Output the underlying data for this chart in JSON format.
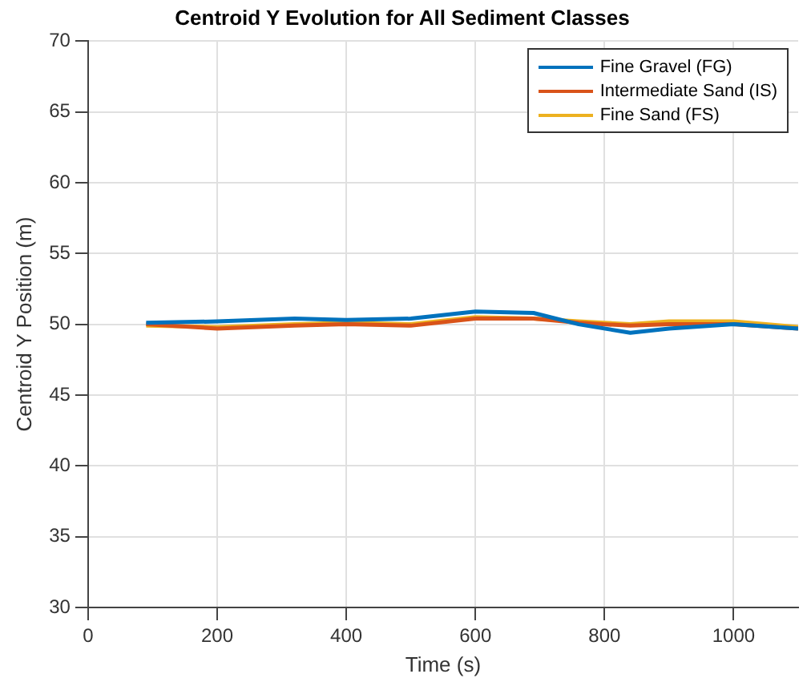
{
  "chart_data": {
    "type": "line",
    "title": "Centroid Y Evolution for All Sediment Classes",
    "xlabel": "Time (s)",
    "ylabel": "Centroid Y Position (m)",
    "x": [
      90,
      200,
      320,
      400,
      500,
      600,
      690,
      760,
      840,
      900,
      1000,
      1100
    ],
    "series": [
      {
        "name": "Fine Gravel (FG)",
        "color": "#0072bd",
        "values": [
          50.1,
          50.2,
          50.4,
          50.3,
          50.4,
          50.9,
          50.8,
          50.0,
          49.4,
          49.7,
          50.0,
          49.7
        ]
      },
      {
        "name": "Intermediate Sand (IS)",
        "color": "#d95319",
        "values": [
          50.0,
          49.7,
          49.9,
          50.0,
          49.9,
          50.4,
          50.4,
          50.1,
          49.9,
          50.0,
          50.0,
          49.7
        ]
      },
      {
        "name": "Fine Sand (FS)",
        "color": "#edb120",
        "values": [
          49.9,
          49.8,
          50.0,
          50.1,
          50.0,
          50.5,
          50.4,
          50.2,
          50.0,
          50.2,
          50.2,
          49.8
        ]
      }
    ],
    "xlim": [
      0,
      1100
    ],
    "xticks": [
      0,
      200,
      400,
      600,
      800,
      1000
    ],
    "ylim": [
      30,
      70
    ],
    "yticks": [
      30,
      35,
      40,
      45,
      50,
      55,
      60,
      65,
      70
    ],
    "grid": true,
    "legend": "top right",
    "marker": "none",
    "line_style": "solid"
  }
}
